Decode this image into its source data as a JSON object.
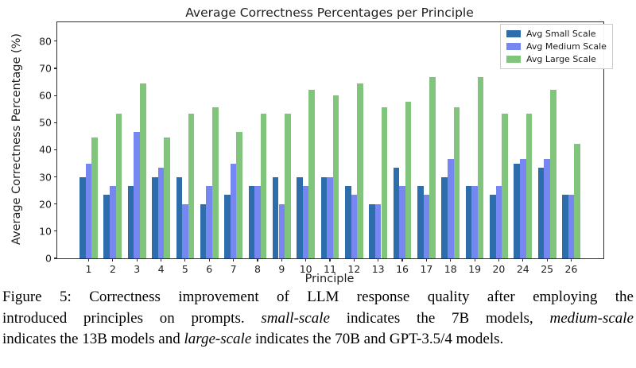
{
  "chart_data": {
    "type": "bar",
    "title": "Average Correctness Percentages per Principle",
    "xlabel": "Principle",
    "ylabel": "Average Correctness Percentage (%)",
    "ylim": [
      0,
      87
    ],
    "yticks": [
      0,
      10,
      20,
      30,
      40,
      50,
      60,
      70,
      80
    ],
    "grid": false,
    "legend_position": "upper right",
    "categories": [
      "1",
      "2",
      "3",
      "4",
      "5",
      "6",
      "7",
      "8",
      "9",
      "10",
      "11",
      "12",
      "13",
      "16",
      "17",
      "18",
      "19",
      "20",
      "24",
      "25",
      "26"
    ],
    "series": [
      {
        "name": "Avg Small Scale",
        "color": "#2e6dab",
        "values": [
          30,
          23.3,
          26.7,
          30,
          30,
          20,
          23.3,
          26.7,
          30,
          30,
          30,
          26.7,
          20,
          33.3,
          26.7,
          30,
          26.7,
          23.3,
          35,
          33.3,
          23.3
        ]
      },
      {
        "name": "Avg Medium Scale",
        "color": "#7787f1",
        "values": [
          35,
          26.7,
          46.7,
          33.3,
          20,
          26.7,
          35,
          26.7,
          20,
          26.7,
          30,
          23.3,
          20,
          26.7,
          23.3,
          36.7,
          26.7,
          26.7,
          36.7,
          36.7,
          23.3
        ]
      },
      {
        "name": "Avg Large Scale",
        "color": "#81c57d",
        "values": [
          44.4,
          53.3,
          64.4,
          44.4,
          53.3,
          55.6,
          46.7,
          53.3,
          53.3,
          62.2,
          60,
          64.4,
          55.6,
          57.8,
          66.7,
          55.6,
          66.7,
          53.3,
          53.3,
          62.2,
          42.2
        ]
      }
    ]
  },
  "caption": {
    "lines": [
      [
        {
          "t": "Figure 5:  Correctness improvement of LLM response quality after employing the",
          "i": false
        }
      ],
      [
        {
          "t": "introduced principles on prompts. ",
          "i": false
        },
        {
          "t": "small-scale",
          "i": true
        },
        {
          "t": " indicates the 7B models, ",
          "i": false
        },
        {
          "t": "medium-scale",
          "i": true
        }
      ],
      [
        {
          "t": "indicates the 13B models and ",
          "i": false
        },
        {
          "t": "large-scale",
          "i": true
        },
        {
          "t": " indicates the 70B and GPT-3.5/4 models.",
          "i": false
        }
      ]
    ]
  }
}
